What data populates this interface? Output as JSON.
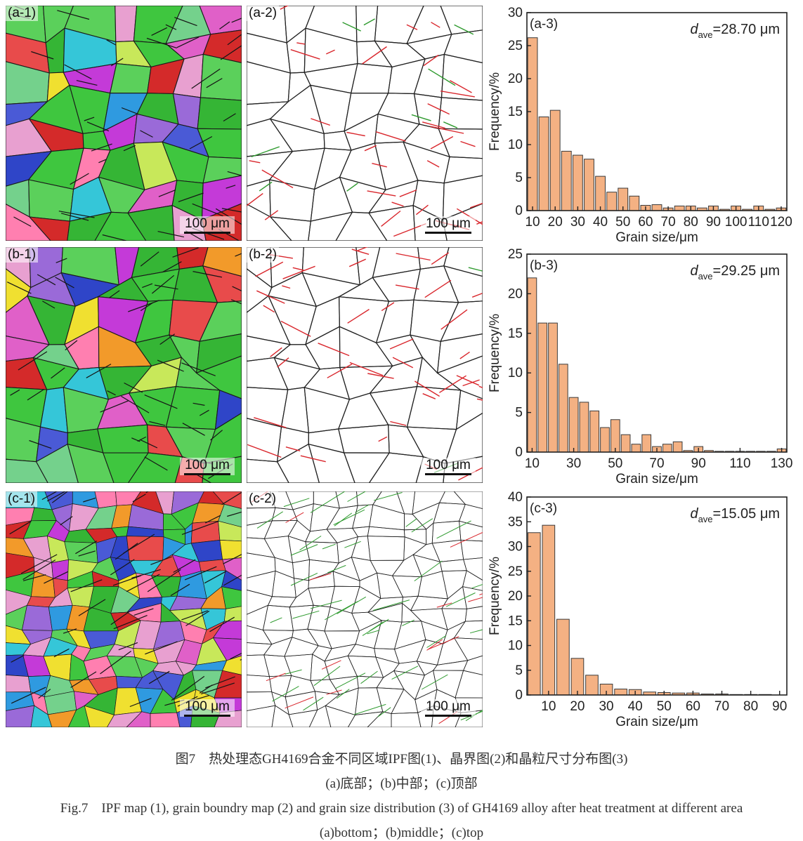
{
  "rows": [
    {
      "ipf": {
        "label": "(a-1)",
        "scale": "100 μm",
        "seed": 11,
        "style": "coarse"
      },
      "gb": {
        "label": "(a-2)",
        "scale": "100 μm",
        "seed": 11,
        "style": "coarse"
      },
      "chart": {
        "label": "(a-3)",
        "d_main": "d",
        "d_sub": "ave",
        "d_value": "=28.70 μm"
      }
    },
    {
      "ipf": {
        "label": "(b-1)",
        "scale": "100 μm",
        "seed": 23,
        "style": "coarse"
      },
      "gb": {
        "label": "(b-2)",
        "scale": "100 μm",
        "seed": 23,
        "style": "coarse"
      },
      "chart": {
        "label": "(b-3)",
        "d_main": "d",
        "d_sub": "ave",
        "d_value": "=29.25 μm"
      }
    },
    {
      "ipf": {
        "label": "(c-1)",
        "scale": "100 μm",
        "seed": 37,
        "style": "fine"
      },
      "gb": {
        "label": "(c-2)",
        "scale": "100 μm",
        "seed": 37,
        "style": "fine"
      },
      "chart": {
        "label": "(c-3)",
        "d_main": "d",
        "d_sub": "ave",
        "d_value": "=15.05 μm"
      }
    }
  ],
  "colors": {
    "bar_fill": "#F4B183",
    "bar_stroke": "#3a3a3a",
    "ipf_palette": [
      "#3fc63f",
      "#5bd05b",
      "#35b535",
      "#2f45c8",
      "#4a5ad6",
      "#d42a2a",
      "#e84b4b",
      "#c43ad8",
      "#e060c8",
      "#f0e030",
      "#f29a2a",
      "#35c6d8",
      "#9a6ad8",
      "#ff7fb0",
      "#74d18c",
      "#c8e85a",
      "#e8a0d0",
      "#2f9ae0"
    ],
    "twin_red": "#d9262c",
    "gb_black": "#222222",
    "gb_green": "#2e9a2e"
  },
  "chart_data": [
    {
      "type": "bar",
      "x": [
        10,
        15,
        20,
        25,
        30,
        35,
        40,
        45,
        50,
        55,
        60,
        65,
        70,
        75,
        80,
        85,
        90,
        95,
        100,
        105,
        110,
        115,
        120
      ],
      "values": [
        26.2,
        14.2,
        15.2,
        9.0,
        8.4,
        7.8,
        5.2,
        2.8,
        3.4,
        2.2,
        0.8,
        0.9,
        0.4,
        0.7,
        0.7,
        0.4,
        0.7,
        0.2,
        0.7,
        0.2,
        0.7,
        0.2,
        0.4
      ],
      "xlabel": "Grain size/μm",
      "ylabel": "Frequency/%",
      "xlim": [
        10,
        120
      ],
      "ylim": [
        0,
        30
      ],
      "xticks": [
        10,
        20,
        30,
        40,
        50,
        60,
        70,
        80,
        90,
        100,
        110,
        120
      ],
      "yticks": [
        0,
        5,
        10,
        15,
        20,
        25,
        30
      ],
      "grid": false
    },
    {
      "type": "bar",
      "x": [
        10,
        15,
        20,
        25,
        30,
        35,
        40,
        45,
        50,
        55,
        60,
        65,
        70,
        75,
        80,
        85,
        90,
        95,
        100,
        105,
        110,
        115,
        120,
        125,
        130
      ],
      "values": [
        22.0,
        16.3,
        16.3,
        11.1,
        6.9,
        6.3,
        5.2,
        3.1,
        4.1,
        2.2,
        1.0,
        2.2,
        0.7,
        1.0,
        1.3,
        0.2,
        0.7,
        0.2,
        0.1,
        0.1,
        0.1,
        0.1,
        0.1,
        0.1,
        0.4
      ],
      "xlabel": "Grain size/μm",
      "ylabel": "Frequency/%",
      "xlim": [
        10,
        130
      ],
      "ylim": [
        0,
        25
      ],
      "xticks": [
        10,
        30,
        50,
        70,
        90,
        110,
        130
      ],
      "yticks": [
        0,
        5,
        10,
        15,
        20,
        25
      ],
      "grid": false
    },
    {
      "type": "bar",
      "x": [
        5,
        10,
        15,
        20,
        25,
        30,
        35,
        40,
        45,
        50,
        55,
        60,
        65,
        70,
        75,
        80,
        85,
        90
      ],
      "values": [
        32.8,
        34.3,
        15.3,
        7.4,
        4.0,
        2.2,
        1.2,
        1.1,
        0.6,
        0.5,
        0.4,
        0.4,
        0.2,
        0.2,
        0.1,
        0.1,
        0.1,
        0.0
      ],
      "xlabel": "Grain size/μm",
      "ylabel": "Frequency/%",
      "xlim": [
        5,
        90
      ],
      "ylim": [
        0,
        40
      ],
      "xticks": [
        10,
        20,
        30,
        40,
        50,
        60,
        70,
        80,
        90
      ],
      "yticks": [
        0,
        5,
        10,
        15,
        20,
        25,
        30,
        35,
        40
      ],
      "grid": false
    }
  ],
  "caption": {
    "line1": "图7　热处理态GH4169合金不同区域IPF图(1)、晶界图(2)和晶粒尺寸分布图(3)",
    "line2": "(a)底部；(b)中部；(c)顶部",
    "line3": "Fig.7　IPF map (1), grain boundry map (2) and grain size distribution (3) of GH4169 alloy after heat treatment at different area",
    "line4": "(a)bottom；(b)middle；(c)top"
  }
}
